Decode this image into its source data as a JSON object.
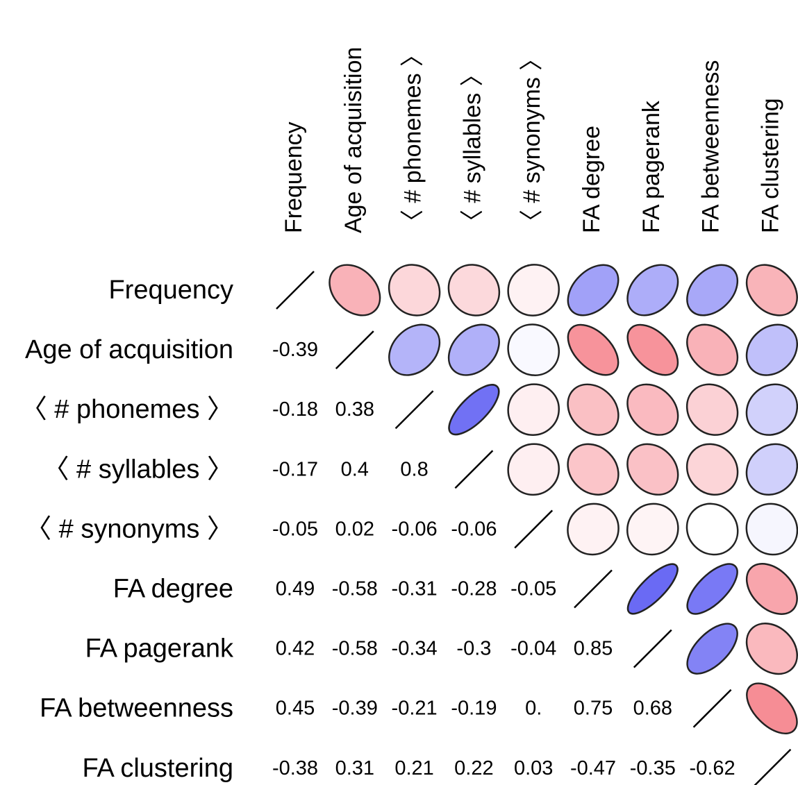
{
  "chart_data": {
    "type": "heatmap",
    "variables": [
      "Frequency",
      "Age of acquisition",
      "〈 # phonemes 〉",
      "〈 # syllables 〉",
      "〈 # synonyms 〉",
      "FA degree",
      "FA pagerank",
      "FA betweenness",
      "FA clustering"
    ],
    "lower_triangle_labels": [
      [],
      [
        "-0.39"
      ],
      [
        "-0.18",
        "0.38"
      ],
      [
        "-0.17",
        "0.4",
        "0.8"
      ],
      [
        "-0.05",
        "0.02",
        "-0.06",
        "-0.06"
      ],
      [
        "0.49",
        "-0.58",
        "-0.31",
        "-0.28",
        "-0.05"
      ],
      [
        "0.42",
        "-0.58",
        "-0.34",
        "-0.3",
        "-0.04",
        "0.85"
      ],
      [
        "0.45",
        "-0.39",
        "-0.21",
        "-0.19",
        "0.",
        "0.75",
        "0.68"
      ],
      [
        "-0.38",
        "0.31",
        "0.21",
        "0.22",
        "0.03",
        "-0.47",
        "-0.35",
        "-0.62"
      ]
    ],
    "matrix": [
      [
        1,
        -0.39,
        -0.18,
        -0.17,
        -0.05,
        0.49,
        0.42,
        0.45,
        -0.38
      ],
      [
        -0.39,
        1,
        0.38,
        0.4,
        0.02,
        -0.58,
        -0.58,
        -0.39,
        0.31
      ],
      [
        -0.18,
        0.38,
        1,
        0.8,
        -0.06,
        -0.31,
        -0.34,
        -0.21,
        0.21
      ],
      [
        -0.17,
        0.4,
        0.8,
        1,
        -0.06,
        -0.28,
        -0.3,
        -0.19,
        0.22
      ],
      [
        -0.05,
        0.02,
        -0.06,
        -0.06,
        1,
        -0.05,
        -0.04,
        0.0,
        0.03
      ],
      [
        0.49,
        -0.58,
        -0.31,
        -0.28,
        -0.05,
        1,
        0.85,
        0.75,
        -0.47
      ],
      [
        0.42,
        -0.58,
        -0.34,
        -0.3,
        -0.04,
        0.85,
        1,
        0.68,
        -0.35
      ],
      [
        0.45,
        -0.39,
        -0.21,
        -0.19,
        0.0,
        0.75,
        0.68,
        1,
        -0.62
      ],
      [
        -0.38,
        0.31,
        0.21,
        0.22,
        0.03,
        -0.47,
        -0.35,
        -0.62,
        1
      ]
    ],
    "upper_triangle": "ellipses",
    "diagonal": "line",
    "colors": {
      "positive": "#3333ee",
      "negative": "#ee3344",
      "outline": "#222222"
    }
  }
}
